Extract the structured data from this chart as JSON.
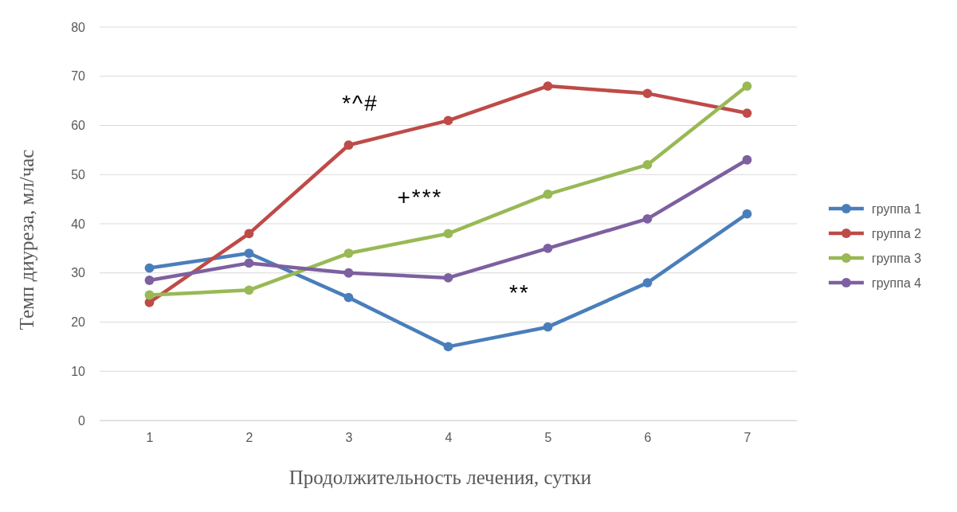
{
  "chart_data": {
    "type": "line",
    "xlabel": "Продолжительность лечения, сутки",
    "ylabel": "Темп диуреза, мл/час",
    "x": [
      1,
      2,
      3,
      4,
      5,
      6,
      7
    ],
    "xlim": [
      0.5,
      7.5
    ],
    "xticks": [
      1,
      2,
      3,
      4,
      5,
      6,
      7
    ],
    "ylim": [
      0,
      80
    ],
    "yticks": [
      0,
      10,
      20,
      30,
      40,
      50,
      60,
      70,
      80
    ],
    "grid": "y",
    "legend": "right",
    "marker": "circle",
    "line_style": "solid",
    "series": [
      {
        "name": "группа 1",
        "color": "#4a7ebb",
        "values": [
          31,
          34,
          25,
          15,
          19,
          28,
          42
        ]
      },
      {
        "name": "группа 2",
        "color": "#be4b48",
        "values": [
          24,
          38,
          56,
          61,
          68,
          66.5,
          62.5
        ]
      },
      {
        "name": "группа 3",
        "color": "#98b954",
        "values": [
          25.5,
          26.5,
          34,
          38,
          46,
          52,
          68
        ]
      },
      {
        "name": "группа 4",
        "color": "#7d60a0",
        "values": [
          28.5,
          32,
          30,
          29,
          35,
          41,
          53
        ]
      }
    ],
    "annotations": [
      "*^#",
      "+***",
      "**"
    ]
  }
}
